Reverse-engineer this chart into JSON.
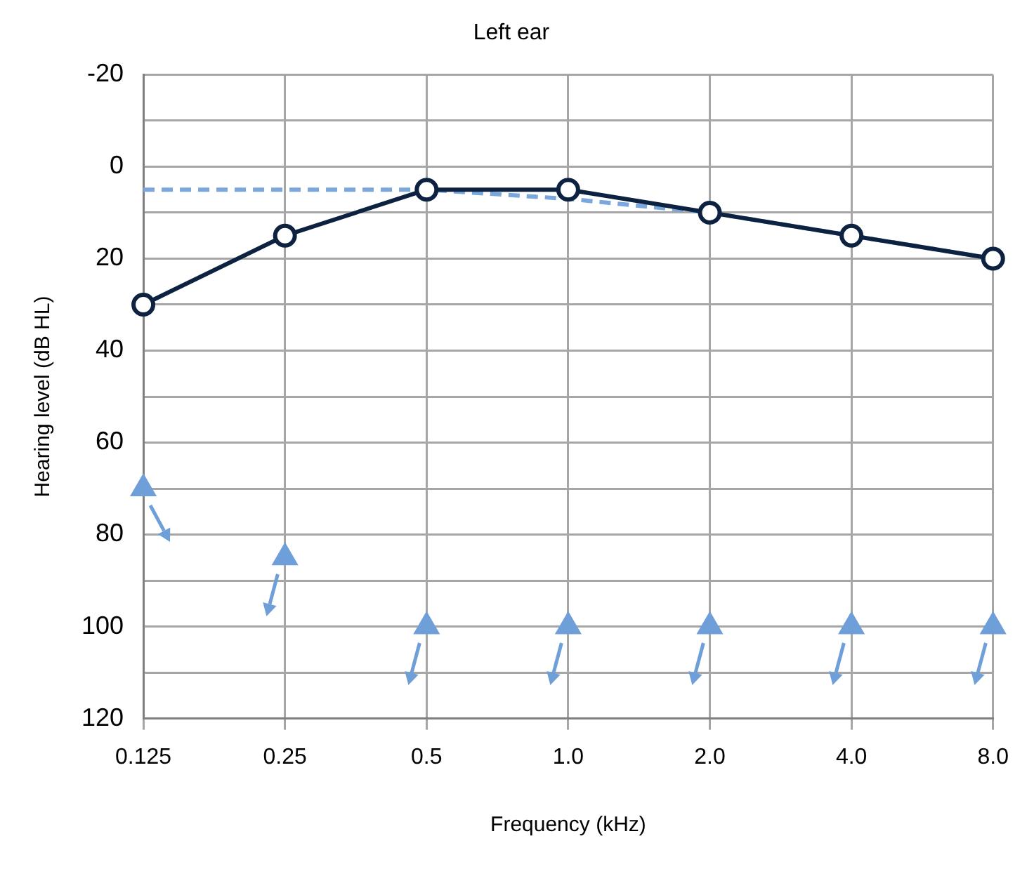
{
  "chart_data": {
    "type": "line",
    "title": "Left ear",
    "xlabel": "Frequency (kHz)",
    "ylabel": "Hearing level (dB HL)",
    "categories": [
      "0.125",
      "0.25",
      "0.5",
      "1.0",
      "2.0",
      "4.0",
      "8.0"
    ],
    "series": [
      {
        "type": "line",
        "color": "#0d2240",
        "values": [
          30,
          15,
          5,
          5,
          10,
          15,
          20
        ],
        "marker": "circle",
        "line_style": "solid"
      },
      {
        "type": "line",
        "color": "#7aa7dc",
        "values": [
          5,
          5,
          5,
          7,
          10,
          15,
          20
        ],
        "marker": "none",
        "line_style": "dashed"
      },
      {
        "type": "scatter",
        "color": "#6f9fd8",
        "values": [
          70,
          85,
          100,
          100,
          100,
          100,
          100
        ],
        "marker": "triangle"
      }
    ],
    "ylim": [
      120,
      -20
    ],
    "yticks": [
      -20,
      {
        "value": -10,
        "label": null
      },
      0,
      {
        "value": 10,
        "label": null
      },
      20,
      {
        "value": 30,
        "label": null
      },
      40,
      {
        "value": 50,
        "label": null
      },
      60,
      {
        "value": 70,
        "label": null
      },
      80,
      {
        "value": 90,
        "label": null
      },
      100,
      {
        "value": 110,
        "label": null
      },
      120
    ],
    "grid": true,
    "legend": false
  }
}
